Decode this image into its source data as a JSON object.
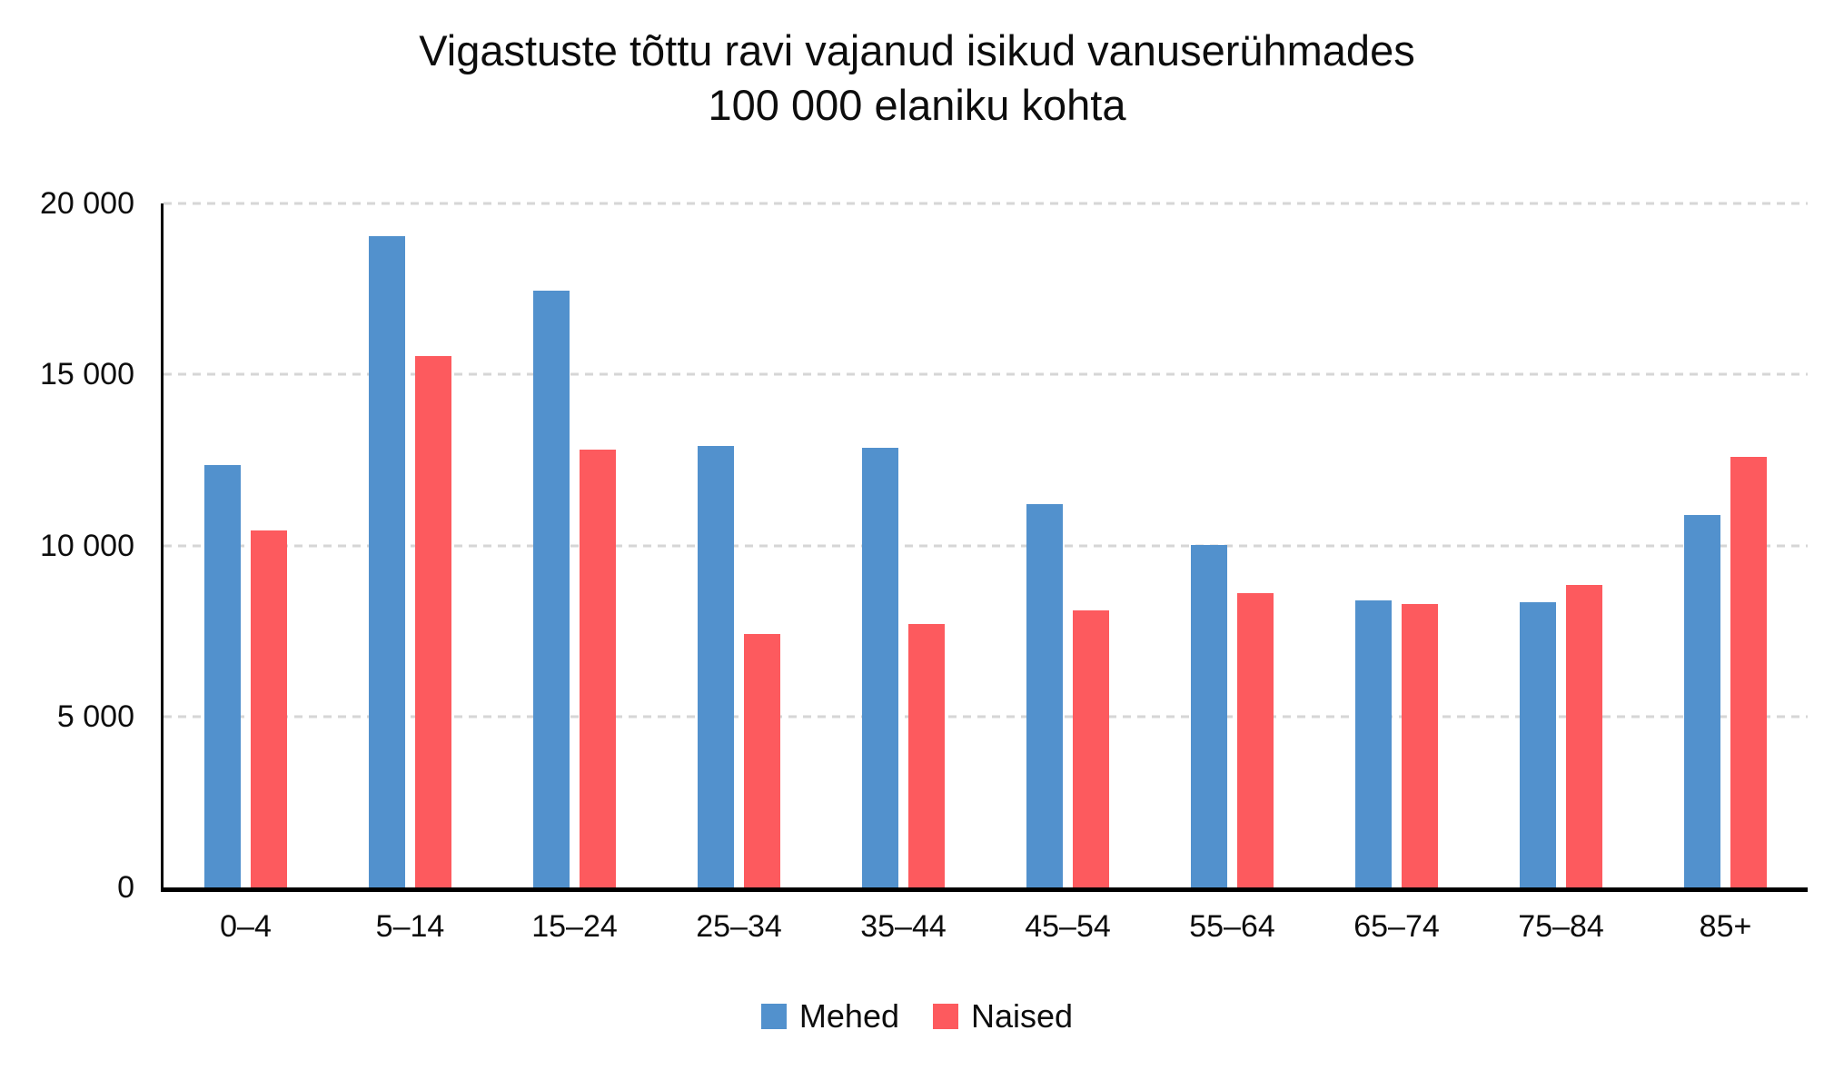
{
  "title": {
    "line1": "Vigastuste tõttu ravi vajanud isikud vanuserühmades",
    "line2": "100 000 elaniku kohta"
  },
  "colors": {
    "mehed_blue": "#5291CD",
    "naised_red": "#FD5A5E",
    "axis_black": "#000000",
    "gridline_gray": "#D6D6D6",
    "background": "#FFFFFF"
  },
  "chart_data": {
    "type": "bar",
    "title": "Vigastuste tõttu ravi vajanud isikud vanuserühmades 100 000 elaniku kohta",
    "xlabel": "",
    "ylabel": "",
    "categories": [
      "0–4",
      "5–14",
      "15–24",
      "25–34",
      "35–44",
      "45–54",
      "55–64",
      "65–74",
      "75–84",
      "85+"
    ],
    "series": [
      {
        "name": "Mehed",
        "color": "#5291CD",
        "values": [
          12350,
          19050,
          17450,
          12900,
          12850,
          11200,
          10000,
          8400,
          8350,
          10900
        ]
      },
      {
        "name": "Naised",
        "color": "#FD5A5E",
        "values": [
          10450,
          15550,
          12800,
          7400,
          7700,
          8100,
          8600,
          8300,
          8850,
          12600
        ]
      }
    ],
    "ylim": [
      0,
      20000
    ],
    "yticks": [
      {
        "label": "20 000",
        "value": 20000
      },
      {
        "label": "15 000",
        "value": 15000
      },
      {
        "label": "10 000",
        "value": 10000
      },
      {
        "label": "5 000",
        "value": 5000
      },
      {
        "label": "0",
        "value": 0
      }
    ],
    "grid": "horizontal-dashed",
    "legend_position": "bottom"
  }
}
